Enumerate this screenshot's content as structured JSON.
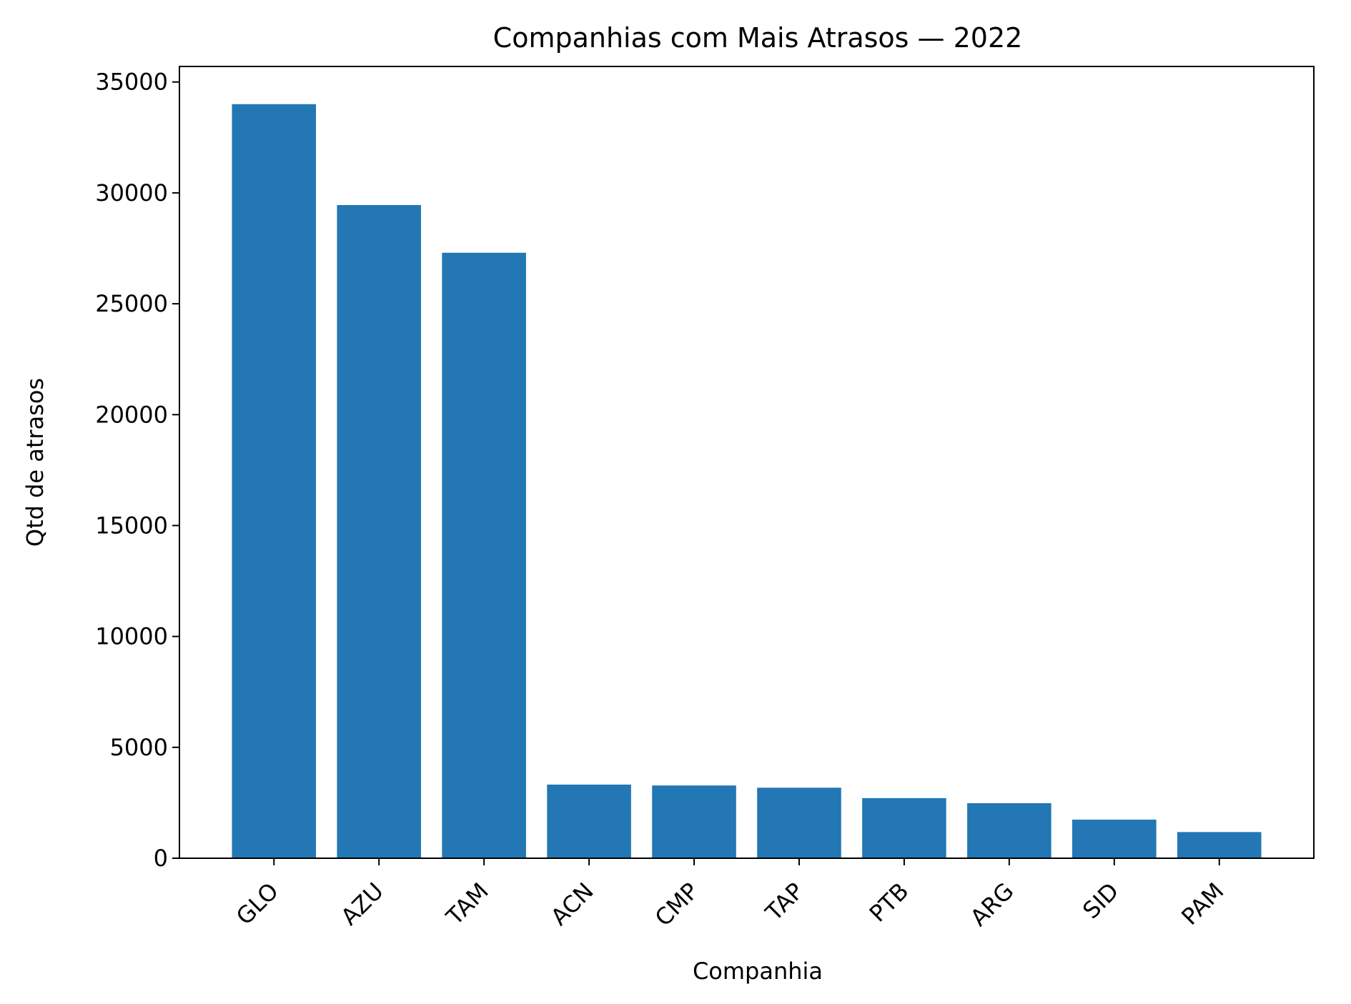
{
  "chart_data": {
    "type": "bar",
    "title": "Companhias com Mais Atrasos — 2022",
    "xlabel": "Companhia",
    "ylabel": "Qtd de atrasos",
    "categories": [
      "GLO",
      "AZU",
      "TAM",
      "ACN",
      "CMP",
      "TAP",
      "PTB",
      "ARG",
      "SID",
      "PAM"
    ],
    "values": [
      34000,
      29450,
      27300,
      3320,
      3280,
      3180,
      2710,
      2480,
      1740,
      1180
    ],
    "ylim": [
      0,
      35700
    ],
    "yticks": [
      0,
      5000,
      10000,
      15000,
      20000,
      25000,
      30000,
      35000
    ],
    "ytick_labels": [
      "0",
      "5000",
      "10000",
      "15000",
      "20000",
      "25000",
      "30000",
      "35000"
    ],
    "bar_color": "#2277b4",
    "grid": false,
    "legend": "none"
  }
}
